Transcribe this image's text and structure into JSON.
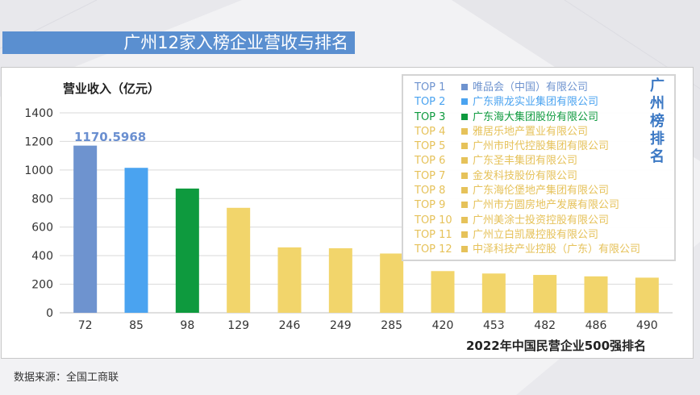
{
  "title": "广州12家入榜企业营收与排名",
  "source": "数据来源：全国工商联",
  "legend_title": "广州榜排名",
  "colors": {
    "title_bg": "#5a8fd0",
    "rank1": "#6e93cf",
    "rank2": "#4aa3f0",
    "rank3": "#0e9a3e",
    "others": "#f2d56b",
    "legend_others_text": "#e6c25a",
    "annotation": "#6a8fd0"
  },
  "legend": [
    {
      "rank": "TOP 1",
      "name": "唯品会（中国）有限公司",
      "color": "#6e93cf"
    },
    {
      "rank": "TOP 2",
      "name": "广东鼎龙实业集团有限公司",
      "color": "#4aa3f0"
    },
    {
      "rank": "TOP 3",
      "name": "广东海大集团股份有限公司",
      "color": "#0e9a3e"
    },
    {
      "rank": "TOP 4",
      "name": "雅居乐地产置业有限公司",
      "color": "#e6c25a"
    },
    {
      "rank": "TOP 5",
      "name": "广州市时代控股集团有限公司",
      "color": "#e6c25a"
    },
    {
      "rank": "TOP 6",
      "name": "广东圣丰集团有限公司",
      "color": "#e6c25a"
    },
    {
      "rank": "TOP 7",
      "name": "金发科技股份有限公司",
      "color": "#e6c25a"
    },
    {
      "rank": "TOP 8",
      "name": "广东海伦堡地产集团有限公司",
      "color": "#e6c25a"
    },
    {
      "rank": "TOP 9",
      "name": "广州市方圆房地产发展有限公司",
      "color": "#e6c25a"
    },
    {
      "rank": "TOP 10",
      "name": "广州美涂士投资控股有限公司",
      "color": "#e6c25a"
    },
    {
      "rank": "TOP 11",
      "name": "广州立白凯晟控股有限公司",
      "color": "#e6c25a"
    },
    {
      "rank": "TOP 12",
      "name": "中泽科技产业控股（广东）有限公司",
      "color": "#e6c25a"
    }
  ],
  "chart_data": {
    "type": "bar",
    "ylabel": "营业收入（亿元）",
    "xlabel": "2022年中国民营企业500强排名",
    "categories": [
      "72",
      "85",
      "98",
      "129",
      "246",
      "249",
      "285",
      "420",
      "453",
      "482",
      "486",
      "490"
    ],
    "values": [
      1170.5968,
      1015,
      870,
      735,
      458,
      452,
      415,
      292,
      275,
      265,
      255,
      246
    ],
    "bar_colors": [
      "#6e93cf",
      "#4aa3f0",
      "#0e9a3e",
      "#f2d56b",
      "#f2d56b",
      "#f2d56b",
      "#f2d56b",
      "#f2d56b",
      "#f2d56b",
      "#f2d56b",
      "#f2d56b",
      "#f2d56b"
    ],
    "yticks": [
      0,
      200,
      400,
      600,
      800,
      1000,
      1200,
      1400
    ],
    "ylim": [
      0,
      1400
    ],
    "annotation": "1170.5968",
    "grid": true
  }
}
